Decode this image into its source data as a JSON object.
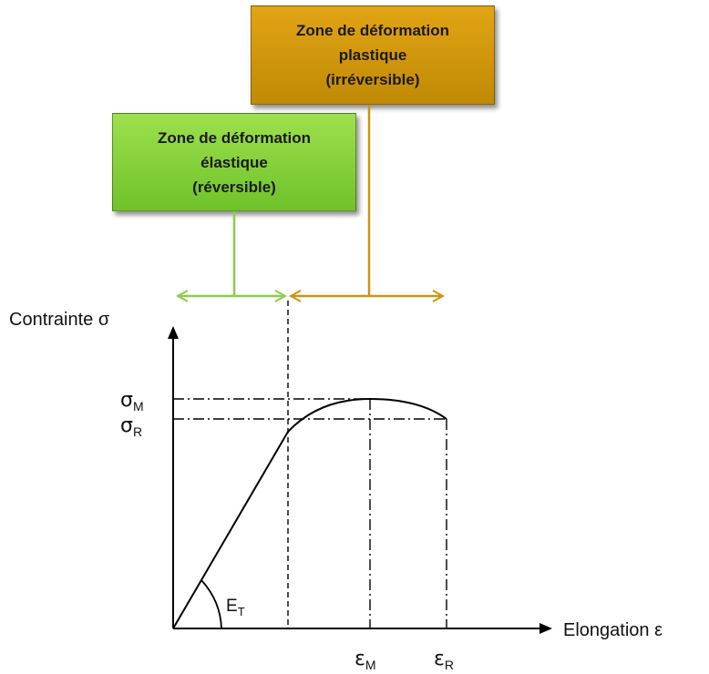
{
  "zones": {
    "plastic": {
      "line1": "Zone de déformation",
      "line2": "plastique",
      "line3": "(irréversible)",
      "color_top": "#e2a414",
      "color_bottom": "#c08a05",
      "connector_color": "#c99512"
    },
    "elastic": {
      "line1": "Zone de déformation",
      "line2": "élastique",
      "line3": "(réversible)",
      "color_top": "#9ee04e",
      "color_bottom": "#6fc22a",
      "connector_color": "#8ccc4c"
    }
  },
  "axes": {
    "y_label": "Contrainte σ",
    "x_label": "Elongation ε"
  },
  "symbols": {
    "sigma": "σ",
    "epsilon": "ε",
    "sigma_M_sub": "M",
    "sigma_R_sub": "R",
    "epsilon_M_sub": "M",
    "epsilon_R_sub": "R",
    "modulus": "E",
    "modulus_sub": "T"
  }
}
